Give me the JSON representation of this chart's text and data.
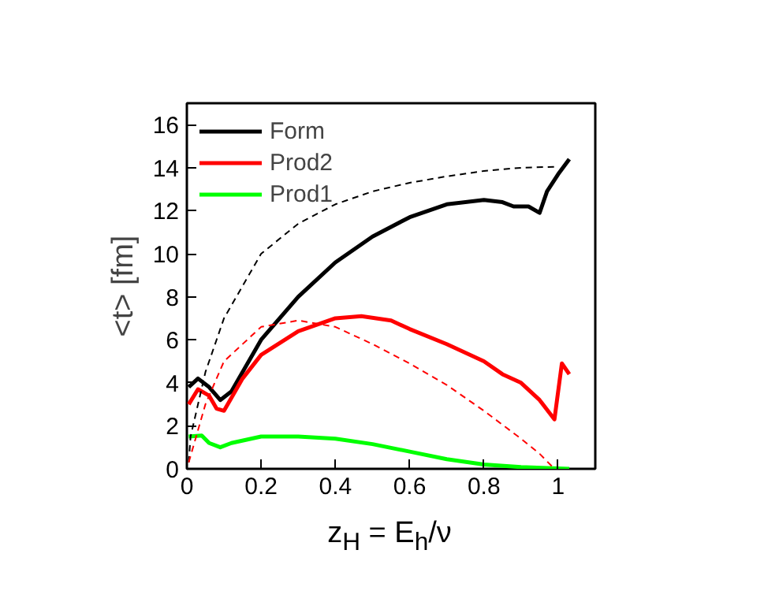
{
  "chart_data": {
    "type": "line",
    "xlabel": "z$_{H}$ = E$_{h}$/ν",
    "ylabel": "<t> [fm]",
    "xlim": [
      0,
      1.1
    ],
    "ylim": [
      0,
      17
    ],
    "xticks": [
      0,
      0.2,
      0.4,
      0.6,
      0.8,
      1
    ],
    "yticks": [
      0,
      2,
      4,
      6,
      8,
      10,
      12,
      14,
      16
    ],
    "grid": false,
    "legend": "top left",
    "line_style": "solid",
    "marker": "none",
    "series": [
      {
        "name": "Form",
        "color": "#000000",
        "x": [
          0.005,
          0.03,
          0.06,
          0.09,
          0.12,
          0.2,
          0.3,
          0.4,
          0.5,
          0.6,
          0.7,
          0.8,
          0.85,
          0.88,
          0.92,
          0.95,
          0.97,
          1.0,
          1.03
        ],
        "values": [
          3.8,
          4.2,
          3.8,
          3.2,
          3.6,
          6.0,
          8.0,
          9.6,
          10.8,
          11.7,
          12.3,
          12.5,
          12.4,
          12.2,
          12.2,
          11.9,
          12.9,
          13.7,
          14.4
        ]
      },
      {
        "name": "Prod2",
        "color": "#ff0000",
        "x": [
          0.005,
          0.03,
          0.06,
          0.08,
          0.1,
          0.15,
          0.2,
          0.3,
          0.4,
          0.47,
          0.55,
          0.6,
          0.7,
          0.8,
          0.85,
          0.9,
          0.95,
          0.99,
          1.01,
          1.03
        ],
        "values": [
          3.0,
          3.7,
          3.4,
          2.8,
          2.7,
          4.2,
          5.3,
          6.4,
          7.0,
          7.1,
          6.9,
          6.5,
          5.8,
          5.0,
          4.4,
          4.0,
          3.2,
          2.3,
          4.9,
          4.4
        ]
      },
      {
        "name": "Prod1",
        "color": "#00ff00",
        "x": [
          0.005,
          0.04,
          0.06,
          0.09,
          0.12,
          0.2,
          0.3,
          0.4,
          0.5,
          0.6,
          0.7,
          0.8,
          0.9,
          1.0,
          1.03
        ],
        "values": [
          1.5,
          1.55,
          1.2,
          1.0,
          1.2,
          1.5,
          1.5,
          1.4,
          1.15,
          0.8,
          0.45,
          0.2,
          0.08,
          0.02,
          0.0
        ]
      },
      {
        "color": "#000000",
        "line_style": "dashed",
        "x": [
          0.005,
          0.01,
          0.05,
          0.1,
          0.2,
          0.3,
          0.4,
          0.5,
          0.6,
          0.7,
          0.8,
          0.9,
          1.0
        ],
        "values": [
          0.3,
          1.5,
          4.5,
          7.0,
          10.0,
          11.4,
          12.3,
          12.9,
          13.3,
          13.6,
          13.85,
          14.0,
          14.05
        ]
      },
      {
        "color": "#ff0000",
        "line_style": "dashed",
        "x": [
          0.005,
          0.05,
          0.1,
          0.2,
          0.3,
          0.4,
          0.5,
          0.6,
          0.7,
          0.8,
          0.9,
          0.95,
          0.99
        ],
        "values": [
          0.3,
          3.0,
          5.0,
          6.6,
          6.9,
          6.6,
          5.8,
          4.9,
          3.9,
          2.7,
          1.4,
          0.7,
          0.0
        ]
      }
    ]
  }
}
